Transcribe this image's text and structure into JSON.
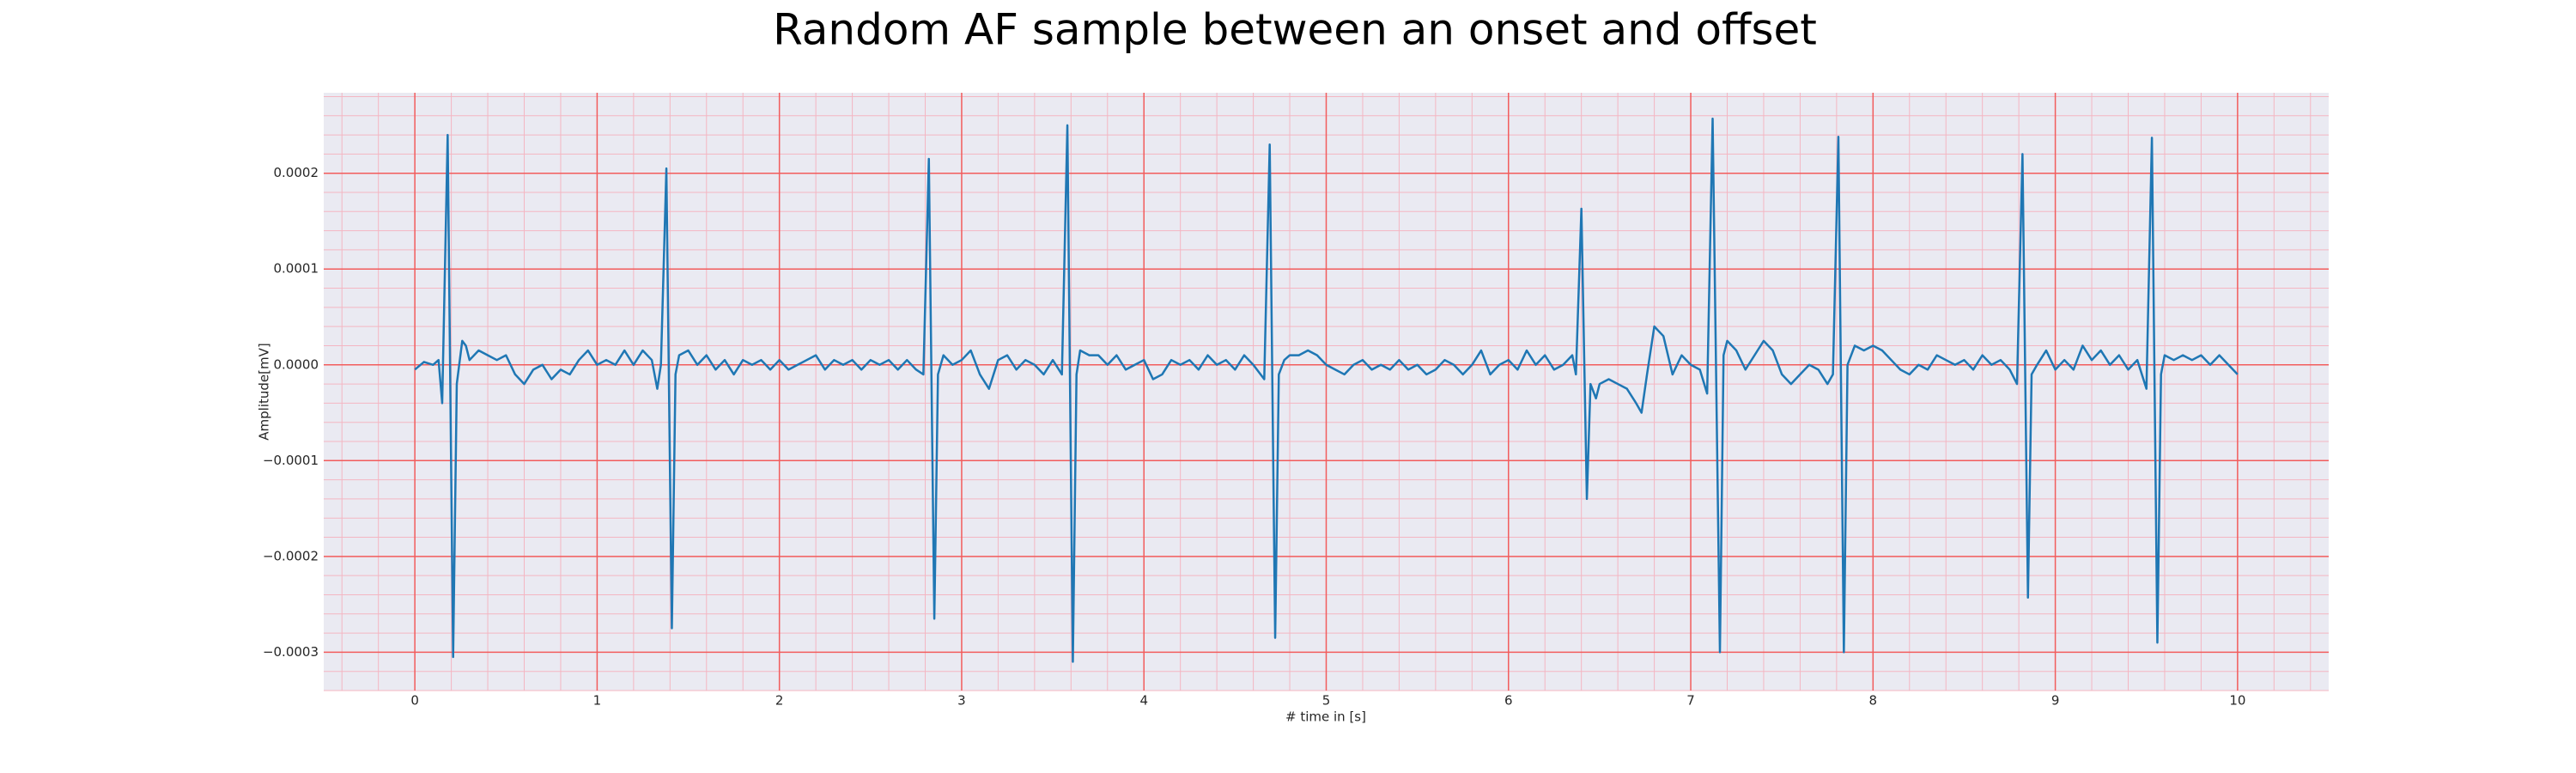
{
  "chart_data": {
    "type": "line",
    "title": "Random AF sample between an onset and offset",
    "xlabel": "# time in [s]",
    "ylabel": "Amplitude[mV]",
    "color": "#1f77b4",
    "grid": true,
    "minor_grid": true,
    "xlim": [
      -0.5,
      10.5
    ],
    "ylim": [
      -0.00034,
      0.000284
    ],
    "xticks": [
      0,
      1,
      2,
      3,
      4,
      5,
      6,
      7,
      8,
      9,
      10
    ],
    "yticks": [
      {
        "value": -0.0003,
        "label": "−0.0003"
      },
      {
        "value": -0.0002,
        "label": "−0.0002"
      },
      {
        "value": -0.0001,
        "label": "−0.0001"
      },
      {
        "value": 0,
        "label": "0.0000"
      },
      {
        "value": 0.0001,
        "label": "0.0001"
      },
      {
        "value": 0.0002,
        "label": "0.0002"
      }
    ],
    "x": [
      0.0,
      0.05,
      0.1,
      0.13,
      0.15,
      0.18,
      0.21,
      0.23,
      0.26,
      0.28,
      0.3,
      0.35,
      0.4,
      0.45,
      0.5,
      0.55,
      0.6,
      0.65,
      0.7,
      0.75,
      0.8,
      0.85,
      0.9,
      0.95,
      1.0,
      1.05,
      1.1,
      1.15,
      1.2,
      1.25,
      1.3,
      1.33,
      1.35,
      1.38,
      1.41,
      1.43,
      1.45,
      1.5,
      1.55,
      1.6,
      1.65,
      1.7,
      1.75,
      1.8,
      1.85,
      1.9,
      1.95,
      2.0,
      2.05,
      2.1,
      2.15,
      2.2,
      2.25,
      2.3,
      2.35,
      2.4,
      2.45,
      2.5,
      2.55,
      2.6,
      2.65,
      2.7,
      2.75,
      2.79,
      2.82,
      2.85,
      2.87,
      2.9,
      2.95,
      3.0,
      3.05,
      3.1,
      3.15,
      3.2,
      3.25,
      3.3,
      3.35,
      3.4,
      3.45,
      3.5,
      3.55,
      3.58,
      3.61,
      3.63,
      3.65,
      3.7,
      3.75,
      3.8,
      3.85,
      3.9,
      3.95,
      4.0,
      4.05,
      4.1,
      4.15,
      4.2,
      4.25,
      4.3,
      4.35,
      4.4,
      4.45,
      4.5,
      4.55,
      4.6,
      4.66,
      4.69,
      4.72,
      4.74,
      4.77,
      4.8,
      4.85,
      4.9,
      4.95,
      5.0,
      5.05,
      5.1,
      5.15,
      5.2,
      5.25,
      5.3,
      5.35,
      5.4,
      5.45,
      5.5,
      5.55,
      5.6,
      5.65,
      5.7,
      5.75,
      5.8,
      5.85,
      5.9,
      5.95,
      6.0,
      6.05,
      6.1,
      6.15,
      6.2,
      6.25,
      6.3,
      6.35,
      6.37,
      6.4,
      6.43,
      6.45,
      6.48,
      6.5,
      6.55,
      6.6,
      6.65,
      6.7,
      6.73,
      6.76,
      6.8,
      6.85,
      6.9,
      6.95,
      7.0,
      7.05,
      7.09,
      7.12,
      7.16,
      7.18,
      7.2,
      7.25,
      7.3,
      7.35,
      7.4,
      7.45,
      7.5,
      7.55,
      7.6,
      7.65,
      7.7,
      7.75,
      7.78,
      7.81,
      7.84,
      7.86,
      7.9,
      7.95,
      8.0,
      8.05,
      8.1,
      8.15,
      8.2,
      8.25,
      8.3,
      8.35,
      8.4,
      8.45,
      8.5,
      8.55,
      8.6,
      8.65,
      8.7,
      8.75,
      8.79,
      8.82,
      8.85,
      8.87,
      8.9,
      8.95,
      9.0,
      9.05,
      9.1,
      9.15,
      9.2,
      9.25,
      9.3,
      9.35,
      9.4,
      9.45,
      9.5,
      9.53,
      9.56,
      9.58,
      9.6,
      9.65,
      9.7,
      9.75,
      9.8,
      9.85,
      9.9,
      9.95,
      10.0
    ],
    "values": [
      -5e-06,
      3e-06,
      0,
      5e-06,
      -4e-05,
      0.00024,
      -0.000305,
      -2e-05,
      2.5e-05,
      2e-05,
      5e-06,
      1.5e-05,
      1e-05,
      5e-06,
      1e-05,
      -1e-05,
      -2e-05,
      -5e-06,
      0,
      -1.5e-05,
      -5e-06,
      -1e-05,
      5e-06,
      1.5e-05,
      0,
      5e-06,
      0,
      1.5e-05,
      0,
      1.5e-05,
      5e-06,
      -2.5e-05,
      0,
      0.000205,
      -0.000275,
      -1e-05,
      1e-05,
      1.5e-05,
      0,
      1e-05,
      -5e-06,
      5e-06,
      -1e-05,
      5e-06,
      0,
      5e-06,
      -5e-06,
      5e-06,
      -5e-06,
      0,
      5e-06,
      1e-05,
      -5e-06,
      5e-06,
      0,
      5e-06,
      -5e-06,
      5e-06,
      0,
      5e-06,
      -5e-06,
      5e-06,
      -5e-06,
      -1e-05,
      0.000215,
      -0.000265,
      -1e-05,
      1e-05,
      0,
      5e-06,
      1.5e-05,
      -1e-05,
      -2.5e-05,
      5e-06,
      1e-05,
      -5e-06,
      5e-06,
      0,
      -1e-05,
      5e-06,
      -1e-05,
      0.00025,
      -0.00031,
      -1e-05,
      1.5e-05,
      1e-05,
      1e-05,
      0,
      1e-05,
      -5e-06,
      0,
      5e-06,
      -1.5e-05,
      -1e-05,
      5e-06,
      0,
      5e-06,
      -5e-06,
      1e-05,
      0,
      5e-06,
      -5e-06,
      1e-05,
      0,
      -1.5e-05,
      0.00023,
      -0.000285,
      -1e-05,
      5e-06,
      1e-05,
      1e-05,
      1.5e-05,
      1e-05,
      0,
      -5e-06,
      -1e-05,
      0,
      5e-06,
      -5e-06,
      0,
      -5e-06,
      5e-06,
      -5e-06,
      0,
      -1e-05,
      -5e-06,
      5e-06,
      0,
      -1e-05,
      0,
      1.5e-05,
      -1e-05,
      0,
      5e-06,
      -5e-06,
      1.5e-05,
      0,
      1e-05,
      -5e-06,
      0,
      1e-05,
      -1e-05,
      0.000163,
      -0.00014,
      -2e-05,
      -3.5e-05,
      -2e-05,
      -1.5e-05,
      -2e-05,
      -2.5e-05,
      -4e-05,
      -5e-05,
      -1e-05,
      4e-05,
      3e-05,
      -1e-05,
      1e-05,
      0,
      -5e-06,
      -3e-05,
      0.000257,
      -0.0003,
      1e-05,
      2.5e-05,
      1.5e-05,
      -5e-06,
      1e-05,
      2.5e-05,
      1.5e-05,
      -1e-05,
      -2e-05,
      -1e-05,
      0,
      -5e-06,
      -2e-05,
      -1e-05,
      0.000238,
      -0.0003,
      0,
      2e-05,
      1.5e-05,
      2e-05,
      1.5e-05,
      5e-06,
      -5e-06,
      -1e-05,
      0,
      -5e-06,
      1e-05,
      5e-06,
      0,
      5e-06,
      -5e-06,
      1e-05,
      0,
      5e-06,
      -5e-06,
      -2e-05,
      0.00022,
      -0.000243,
      -1e-05,
      0,
      1.5e-05,
      -5e-06,
      5e-06,
      -5e-06,
      2e-05,
      5e-06,
      1.5e-05,
      0,
      1e-05,
      -5e-06,
      5e-06,
      -2.5e-05,
      0.000237,
      -0.00029,
      -1e-05,
      1e-05,
      5e-06,
      1e-05,
      5e-06,
      1e-05,
      0,
      1e-05,
      0,
      -1e-05
    ]
  }
}
